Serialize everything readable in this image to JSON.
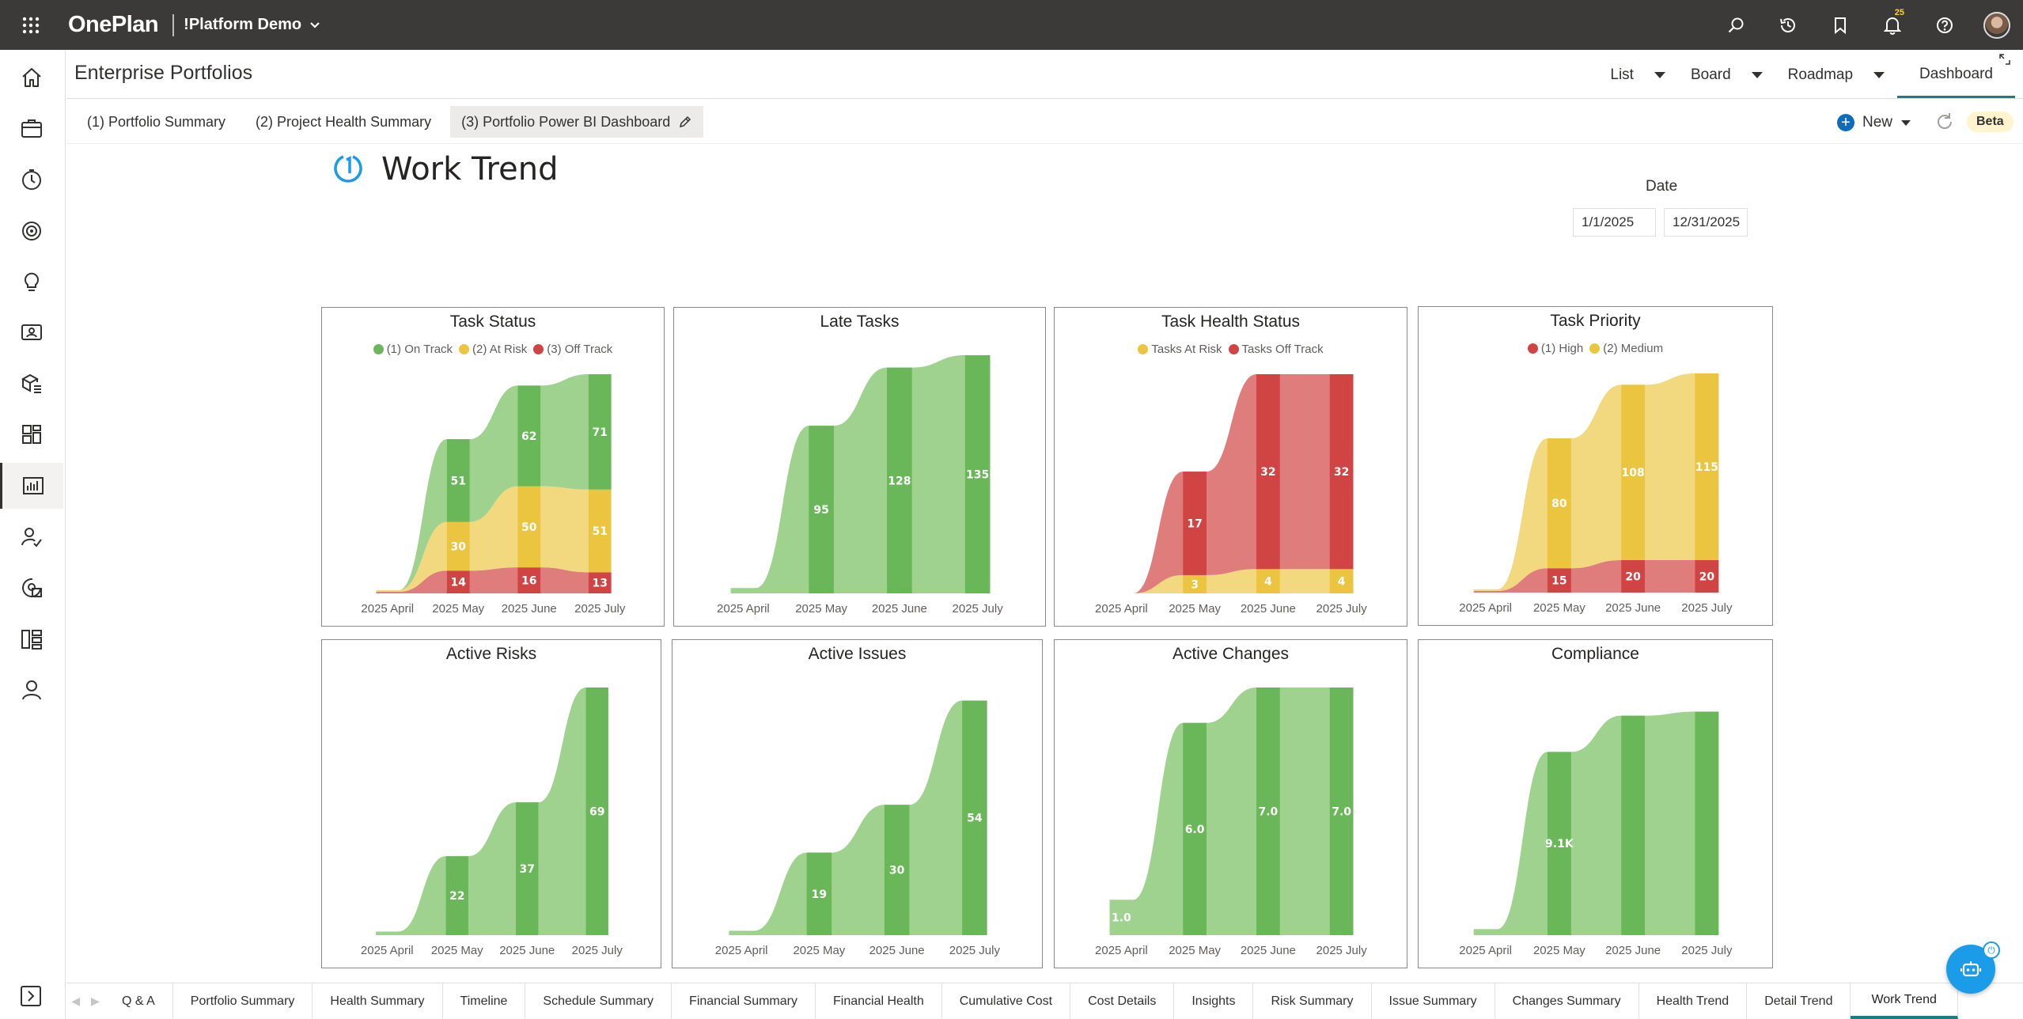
{
  "topbar": {
    "brand": "OnePlan",
    "tenant": "!Platform Demo",
    "notification_count": "25"
  },
  "header": {
    "page_title": "Enterprise Portfolios",
    "view_tabs": [
      {
        "label": "List"
      },
      {
        "label": "Board"
      },
      {
        "label": "Roadmap"
      },
      {
        "label": "Dashboard"
      }
    ]
  },
  "report_tabs": [
    {
      "label": "(1) Portfolio Summary"
    },
    {
      "label": "(2) Project Health Summary"
    },
    {
      "label": "(3) Portfolio Power BI Dashboard"
    }
  ],
  "toolbar": {
    "new_label": "New",
    "beta_label": "Beta"
  },
  "report": {
    "title": "Work Trend",
    "date_label": "Date",
    "date_start": "1/1/2025",
    "date_end": "12/31/2025"
  },
  "colors": {
    "green": "#6ab75a",
    "green_light": "#9fd28f",
    "yellow": "#ebc53f",
    "yellow_light": "#f2d87e",
    "red": "#d04444",
    "red_light": "#df7d7d",
    "accent": "#1c7c84",
    "topbar": "#3b3a39"
  },
  "chart_data": [
    {
      "id": "task-status",
      "type": "area",
      "title": "Task Status",
      "categories": [
        "2025 April",
        "2025 May",
        "2025 June",
        "2025 July"
      ],
      "series": [
        {
          "name": "(3) Off Track",
          "values": [
            1,
            14,
            16,
            13
          ],
          "color": "red"
        },
        {
          "name": "(2) At Risk",
          "values": [
            1,
            30,
            50,
            51
          ],
          "color": "yellow"
        },
        {
          "name": "(1) On Track",
          "values": [
            0,
            51,
            62,
            71
          ],
          "color": "green"
        }
      ],
      "labels": [
        [
          "",
          "14",
          "16",
          "13"
        ],
        [
          "",
          "30",
          "50",
          "51"
        ],
        [
          "",
          "51",
          "62",
          "71"
        ]
      ],
      "ymax": 135,
      "legend": "top"
    },
    {
      "id": "late-tasks",
      "type": "area",
      "title": "Late Tasks",
      "categories": [
        "2025 April",
        "2025 May",
        "2025 June",
        "2025 July"
      ],
      "series": [
        {
          "values": [
            3,
            95,
            128,
            135
          ],
          "color": "green"
        }
      ],
      "labels": [
        [
          "",
          "95",
          "128",
          "135"
        ]
      ],
      "ymax": 135
    },
    {
      "id": "task-health",
      "type": "area",
      "title": "Task Health Status",
      "categories": [
        "2025 April",
        "2025 May",
        "2025 June",
        "2025 July"
      ],
      "series": [
        {
          "name": "Tasks At Risk",
          "values": [
            0,
            3,
            4,
            4
          ],
          "color": "yellow"
        },
        {
          "name": "Tasks Off Track",
          "values": [
            0,
            17,
            32,
            32
          ],
          "color": "red"
        }
      ],
      "labels": [
        [
          "",
          "3",
          "4",
          "4"
        ],
        [
          "",
          "17",
          "32",
          "32"
        ]
      ],
      "ymax": 36,
      "legend": "top"
    },
    {
      "id": "task-priority",
      "type": "area",
      "title": "Task Priority",
      "categories": [
        "2025 April",
        "2025 May",
        "2025 June",
        "2025 July"
      ],
      "series": [
        {
          "name": "(1) High",
          "values": [
            1,
            15,
            20,
            20
          ],
          "color": "red"
        },
        {
          "name": "(2) Medium",
          "values": [
            1,
            80,
            108,
            115
          ],
          "color": "yellow"
        }
      ],
      "labels": [
        [
          "",
          "15",
          "20",
          "20"
        ],
        [
          "",
          "80",
          "108",
          "115"
        ]
      ],
      "ymax": 135,
      "legend": "top"
    },
    {
      "id": "active-risks",
      "type": "area",
      "title": "Active Risks",
      "categories": [
        "2025 April",
        "2025 May",
        "2025 June",
        "2025 July"
      ],
      "series": [
        {
          "values": [
            1,
            22,
            37,
            69
          ],
          "color": "green"
        }
      ],
      "labels": [
        [
          "",
          "22",
          "37",
          "69"
        ]
      ],
      "ymax": 69
    },
    {
      "id": "active-issues",
      "type": "area",
      "title": "Active Issues",
      "categories": [
        "2025 April",
        "2025 May",
        "2025 June",
        "2025 July"
      ],
      "series": [
        {
          "values": [
            1,
            19,
            30,
            54
          ],
          "color": "green"
        }
      ],
      "labels": [
        [
          "",
          "19",
          "30",
          "54"
        ]
      ],
      "ymax": 57
    },
    {
      "id": "active-changes",
      "type": "area",
      "title": "Active Changes",
      "categories": [
        "2025 April",
        "2025 May",
        "2025 June",
        "2025 July"
      ],
      "series": [
        {
          "values": [
            1.0,
            6.0,
            7.0,
            7.0
          ],
          "color": "green"
        }
      ],
      "labels": [
        [
          "1.0",
          "6.0",
          "7.0",
          "7.0"
        ]
      ],
      "ymax": 7.0
    },
    {
      "id": "compliance",
      "type": "area",
      "title": "Compliance",
      "categories": [
        "2025 April",
        "2025 May",
        "2025 June",
        "2025 July"
      ],
      "series": [
        {
          "values": [
            300,
            9100,
            10900,
            11100
          ],
          "color": "green"
        }
      ],
      "labels": [
        [
          "",
          "9.1K",
          "",
          ""
        ]
      ],
      "ymax": 12300
    }
  ],
  "bottom_tabs": [
    {
      "label": "Q & A"
    },
    {
      "label": "Portfolio Summary"
    },
    {
      "label": "Health Summary"
    },
    {
      "label": "Timeline"
    },
    {
      "label": "Schedule Summary"
    },
    {
      "label": "Financial Summary"
    },
    {
      "label": "Financial Health"
    },
    {
      "label": "Cumulative Cost"
    },
    {
      "label": "Cost Details"
    },
    {
      "label": "Insights"
    },
    {
      "label": "Risk Summary"
    },
    {
      "label": "Issue Summary"
    },
    {
      "label": "Changes Summary"
    },
    {
      "label": "Health Trend"
    },
    {
      "label": "Detail Trend"
    },
    {
      "label": "Work Trend"
    }
  ],
  "rail_icons": [
    "home-icon",
    "briefcase-icon",
    "timer-icon",
    "target-icon",
    "lightbulb-icon",
    "contact-card-icon",
    "cube-list-icon",
    "dashboard-grid-icon",
    "chart-icon",
    "people-check-icon",
    "resource-icon",
    "org-chart-icon",
    "person-icon"
  ]
}
